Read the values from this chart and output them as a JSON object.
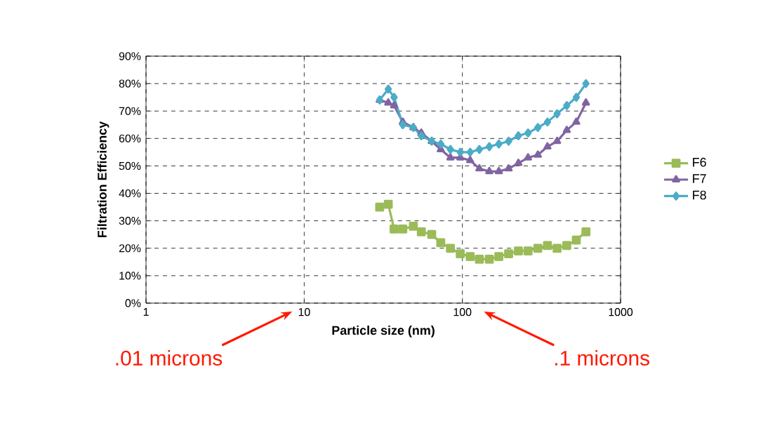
{
  "chart_data": {
    "type": "line",
    "xlabel": "Particle size (nm)",
    "ylabel": "Filtration Efficiency",
    "log": "x",
    "x": [
      30,
      34,
      37,
      42,
      49,
      55,
      64,
      73,
      84,
      97,
      112,
      128,
      148,
      170,
      196,
      226,
      260,
      300,
      345,
      397,
      457,
      525,
      604
    ],
    "series": [
      {
        "name": "F6",
        "color": "#9bbb59",
        "marker": "square",
        "values": [
          35,
          36,
          27,
          27,
          28,
          26,
          25,
          22,
          20,
          18,
          17,
          16,
          16,
          17,
          18,
          19,
          19,
          20,
          21,
          20,
          21,
          23,
          26
        ]
      },
      {
        "name": "F7",
        "color": "#8064a2",
        "marker": "triangle",
        "values": [
          74,
          73,
          72,
          66,
          64,
          62,
          59,
          56,
          53,
          53,
          52,
          49,
          48,
          48,
          49,
          51,
          53,
          54,
          57,
          59,
          63,
          66,
          73
        ]
      },
      {
        "name": "F8",
        "color": "#4bacc6",
        "marker": "diamond",
        "values": [
          74,
          78,
          75,
          65,
          64,
          61,
          59,
          58,
          56,
          55,
          55,
          56,
          57,
          58,
          59,
          61,
          62,
          64,
          66,
          69,
          72,
          75,
          80
        ]
      }
    ],
    "xlim": [
      1,
      1000
    ],
    "xticks": [
      1,
      10,
      100,
      1000
    ],
    "ylim": [
      0,
      90
    ],
    "yticks": [
      {
        "value": 0,
        "label": "0%"
      },
      {
        "value": 10,
        "label": "10%"
      },
      {
        "value": 20,
        "label": "20%"
      },
      {
        "value": 30,
        "label": "30%"
      },
      {
        "value": 40,
        "label": "40%"
      },
      {
        "value": 50,
        "label": "50%"
      },
      {
        "value": 60,
        "label": "60%"
      },
      {
        "value": 70,
        "label": "70%"
      },
      {
        "value": 80,
        "label": "80%"
      },
      {
        "value": 90,
        "label": "90%"
      }
    ],
    "grid": true,
    "legend": "right",
    "line_style": "solid",
    "annotations": [
      ".01 microns",
      ".1 microns"
    ]
  }
}
